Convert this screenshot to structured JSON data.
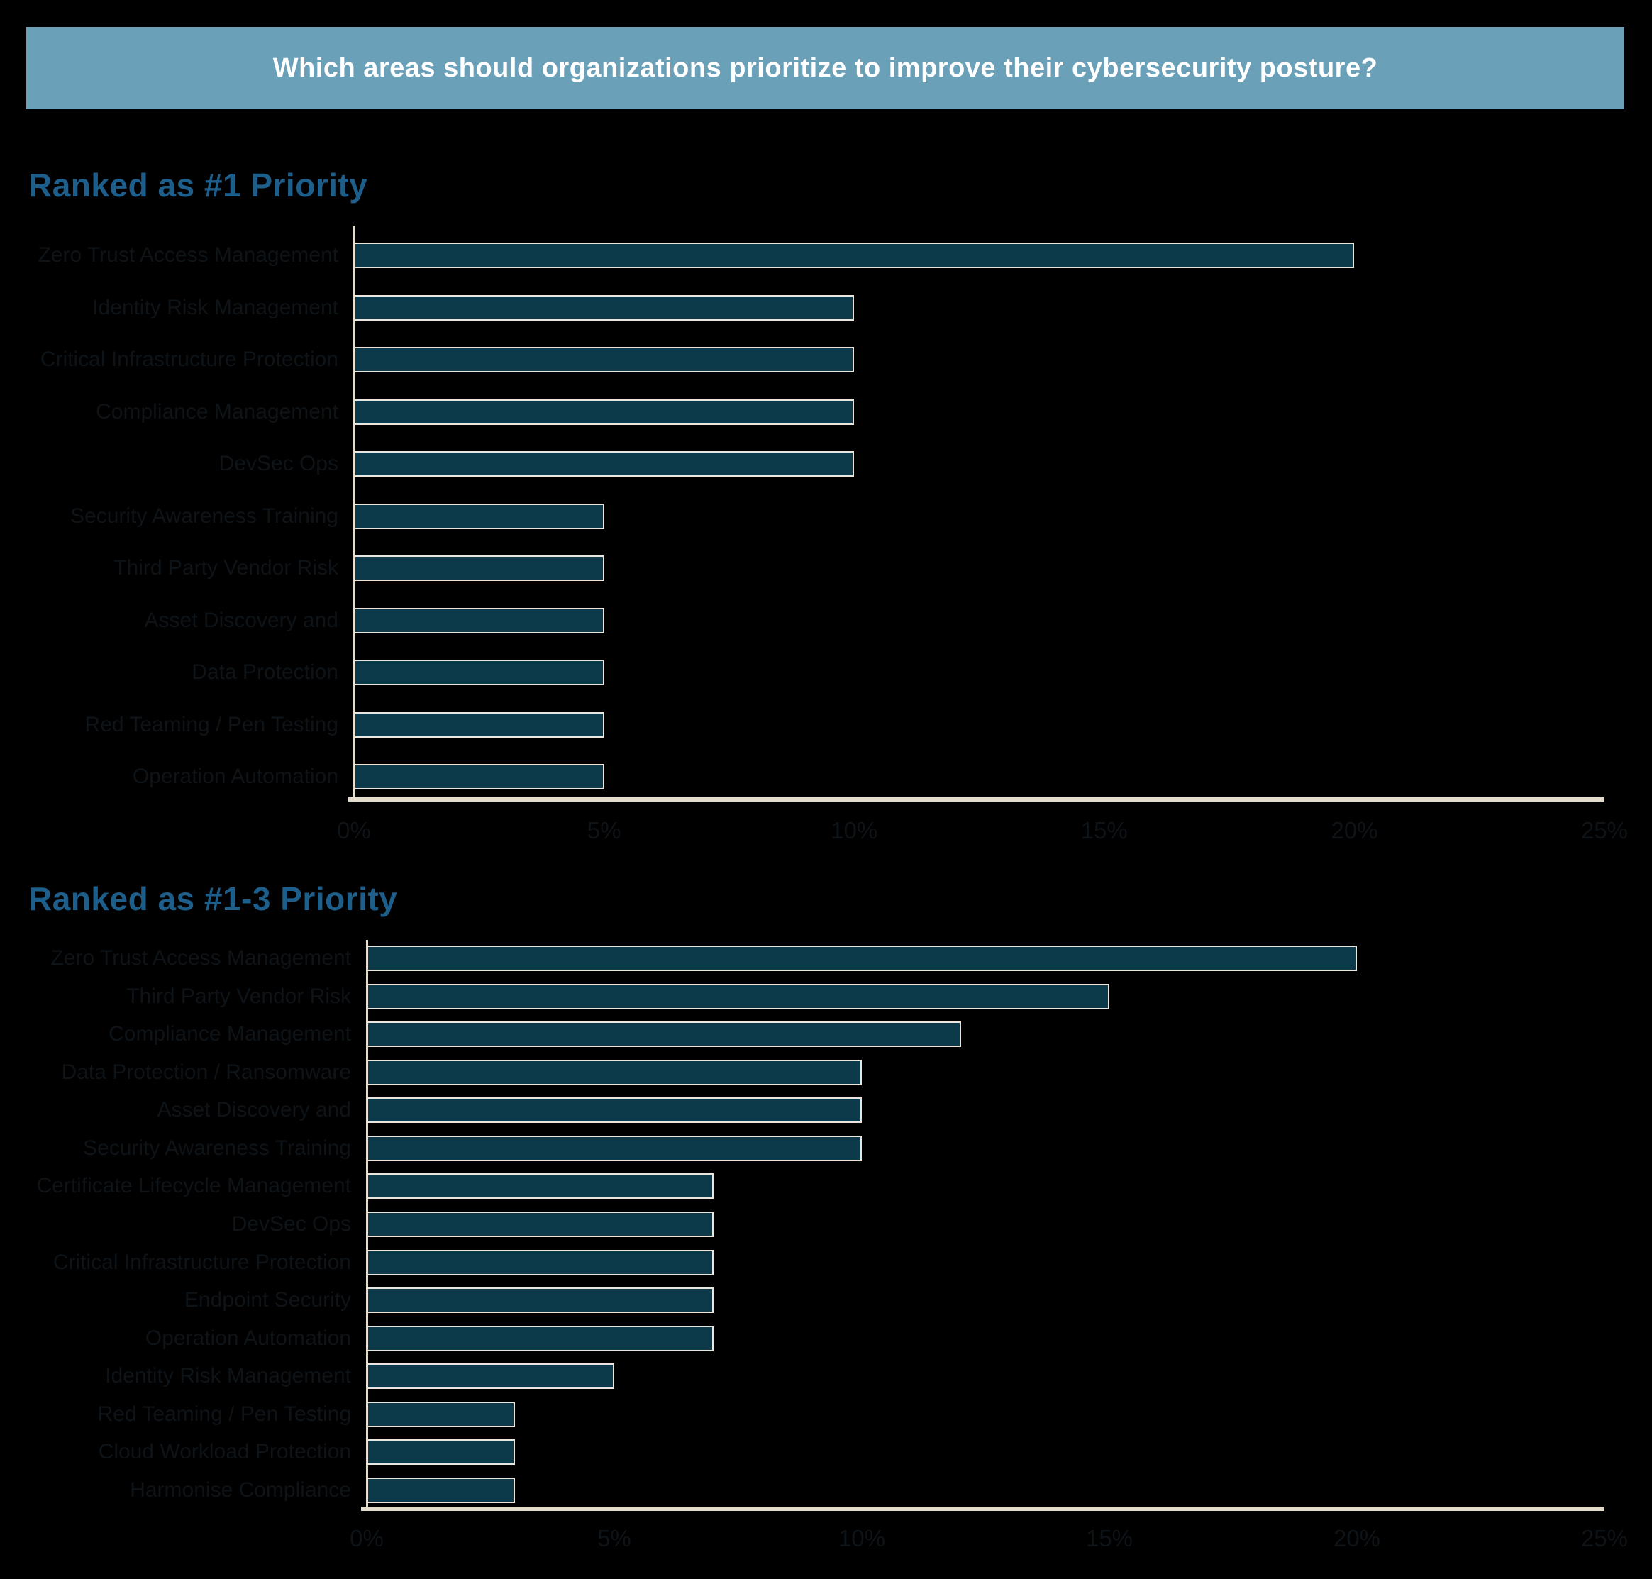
{
  "banner": {
    "title": "Which areas should organizations prioritize to improve their cybersecurity posture?"
  },
  "colors": {
    "background": "#000000",
    "banner_bg": "#6AA0B8",
    "banner_text": "#FFFFFF",
    "heading": "#1E5E8A",
    "bar_fill": "#0C3A4A",
    "bar_outline": "#EAE6DE",
    "axis": "#E3DBCC",
    "tick_label": "#0E1317",
    "category_label": "#0E1317"
  },
  "chart_data": [
    {
      "type": "bar",
      "orientation": "horizontal",
      "title": "Ranked as #1 Priority",
      "categories": [
        "Zero Trust Access Management",
        "Identity Risk Management",
        "Critical Infrastructure Protection",
        "Compliance Management",
        "DevSec Ops",
        "Security Awareness Training",
        "Third Party Vendor Risk",
        "Asset Discovery and",
        "Data Protection",
        "Red Teaming / Pen Testing",
        "Operation Automation"
      ],
      "values": [
        20,
        10,
        10,
        10,
        10,
        5,
        5,
        5,
        5,
        5,
        5
      ],
      "unit": "%",
      "xlim": [
        0,
        25
      ],
      "x_ticks": [
        "0%",
        "5%",
        "10%",
        "15%",
        "20%",
        "25%"
      ],
      "grid": false,
      "legend": null
    },
    {
      "type": "bar",
      "orientation": "horizontal",
      "title": "Ranked as #1-3 Priority",
      "categories": [
        "Zero Trust Access Management",
        "Third Party Vendor Risk",
        "Compliance Management",
        "Data Protection / Ransomware",
        "Asset Discovery and",
        "Security Awareness Training",
        "Certificate Lifecycle Management",
        "DevSec Ops",
        "Critical Infrastructure Protection",
        "Endpoint Security",
        "Operation Automation",
        "Identity Risk Management",
        "Red Teaming / Pen Testing",
        "Cloud Workload Protection",
        "Harmonise Compliance"
      ],
      "values": [
        20,
        15,
        12,
        10,
        10,
        10,
        7,
        7,
        7,
        7,
        7,
        5,
        3,
        3,
        3
      ],
      "unit": "%",
      "xlim": [
        0,
        25
      ],
      "x_ticks": [
        "0%",
        "5%",
        "10%",
        "15%",
        "20%",
        "25%"
      ],
      "grid": false,
      "legend": null
    }
  ]
}
